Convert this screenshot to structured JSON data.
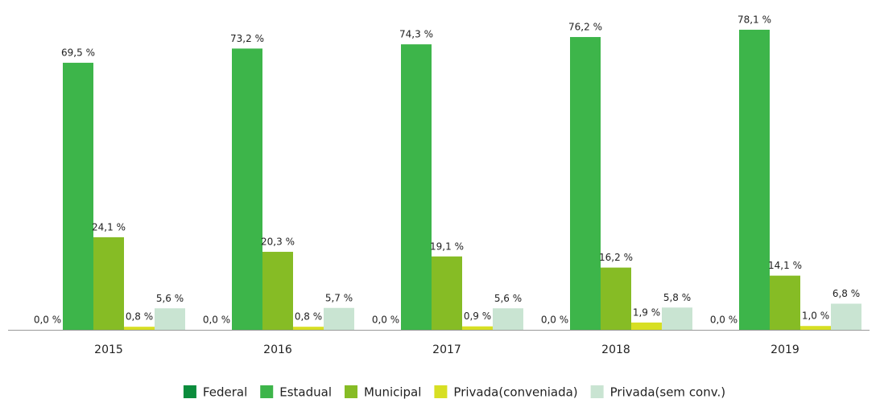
{
  "chart_data": {
    "type": "bar",
    "categories": [
      "2015",
      "2016",
      "2017",
      "2018",
      "2019"
    ],
    "ylim": [
      0,
      85
    ],
    "series": [
      {
        "name": "Federal",
        "color": "#0b8c3c",
        "values": [
          0,
          0,
          0,
          0,
          0
        ],
        "value_labels": [
          "0,0 %",
          "0,0 %",
          "0,0 %",
          "0,0 %",
          "0,0 %"
        ]
      },
      {
        "name": "Estadual",
        "color": "#3db54a",
        "values": [
          69.5,
          73.2,
          74.3,
          76.2,
          78.1
        ],
        "value_labels": [
          "69,5 %",
          "73,2 %",
          "74,3 %",
          "76,2 %",
          "78,1 %"
        ]
      },
      {
        "name": "Municipal",
        "color": "#86bc25",
        "values": [
          24.1,
          20.3,
          19.1,
          16.2,
          14.1
        ],
        "value_labels": [
          "24,1 %",
          "20,3 %",
          "19,1 %",
          "16,2 %",
          "14,1 %"
        ]
      },
      {
        "name": "Privada(conveniada)",
        "color": "#d7df23",
        "values": [
          0.8,
          0.8,
          0.9,
          1.9,
          1.0
        ],
        "value_labels": [
          "0,8 %",
          "0,8 %",
          "0,9 %",
          "1,9 %",
          "1,0 %"
        ]
      },
      {
        "name": "Privada(sem conv.)",
        "color": "#c9e4d2",
        "values": [
          5.6,
          5.7,
          5.6,
          5.8,
          6.8
        ],
        "value_labels": [
          "5,6 %",
          "5,7 %",
          "5,6 %",
          "5,8 %",
          "6,8 %"
        ]
      }
    ]
  }
}
